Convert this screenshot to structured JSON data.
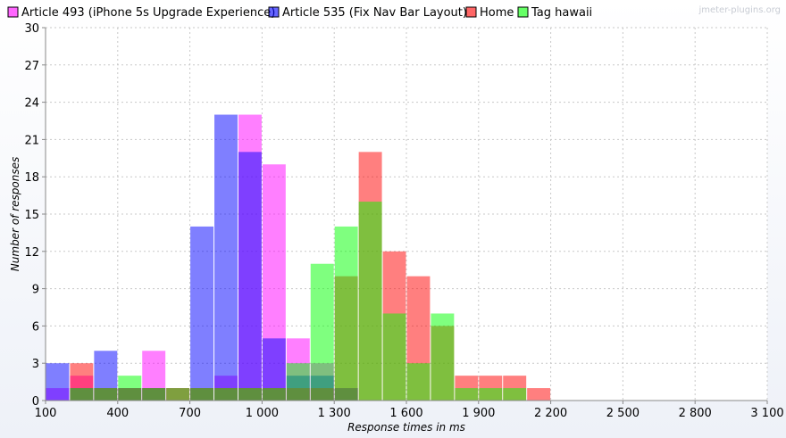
{
  "watermark": "jmeter-plugins.org",
  "chart_data": {
    "type": "bar",
    "subtype": "overlapping-histogram",
    "xlabel": "Response times in ms",
    "ylabel": "Number of responses",
    "xlim": [
      100,
      3100
    ],
    "ylim": [
      0,
      30
    ],
    "bin_width": 100,
    "x_ticks": [
      100,
      400,
      700,
      1000,
      1300,
      1600,
      1900,
      2200,
      2500,
      2800,
      3100
    ],
    "x_tick_labels": [
      "100",
      "400",
      "700",
      "1 000",
      "1 300",
      "1 600",
      "1 900",
      "2 200",
      "2 500",
      "2 800",
      "3 100"
    ],
    "y_ticks": [
      0,
      3,
      6,
      9,
      12,
      15,
      18,
      21,
      24,
      27,
      30
    ],
    "grid": true,
    "legend_position": "top-left",
    "series": [
      {
        "name": "Article 493 (iPhone 5s Upgrade Experience)",
        "color": "#ff00ff",
        "x": [
          100,
          200,
          300,
          400,
          500,
          600,
          700,
          800,
          900,
          1000,
          1100,
          1200,
          1300
        ],
        "values": [
          1,
          2,
          1,
          1,
          4,
          1,
          1,
          2,
          23,
          19,
          5,
          3,
          1
        ]
      },
      {
        "name": "Article 535 (Fix Nav Bar Layout)",
        "color": "#0000ff",
        "x": [
          100,
          200,
          300,
          400,
          500,
          600,
          700,
          800,
          900,
          1000,
          1100,
          1200,
          1300
        ],
        "values": [
          3,
          1,
          4,
          1,
          1,
          0,
          14,
          23,
          20,
          5,
          2,
          2,
          1
        ]
      },
      {
        "name": "Home",
        "color": "#ff0000",
        "x": [
          100,
          200,
          300,
          400,
          500,
          600,
          700,
          800,
          900,
          1000,
          1100,
          1200,
          1300,
          1400,
          1500,
          1600,
          1700,
          1800,
          1900,
          2000,
          2100
        ],
        "values": [
          0,
          3,
          1,
          1,
          1,
          1,
          1,
          1,
          1,
          1,
          1,
          1,
          10,
          20,
          12,
          10,
          6,
          2,
          2,
          2,
          1
        ]
      },
      {
        "name": "Tag hawaii",
        "color": "#00ff00",
        "x": [
          100,
          200,
          300,
          400,
          500,
          600,
          700,
          800,
          900,
          1000,
          1100,
          1200,
          1300,
          1400,
          1500,
          1600,
          1700,
          1800,
          1900,
          2000
        ],
        "values": [
          0,
          1,
          1,
          2,
          1,
          1,
          1,
          1,
          1,
          1,
          3,
          11,
          14,
          16,
          7,
          3,
          7,
          1,
          1,
          1
        ]
      }
    ]
  }
}
